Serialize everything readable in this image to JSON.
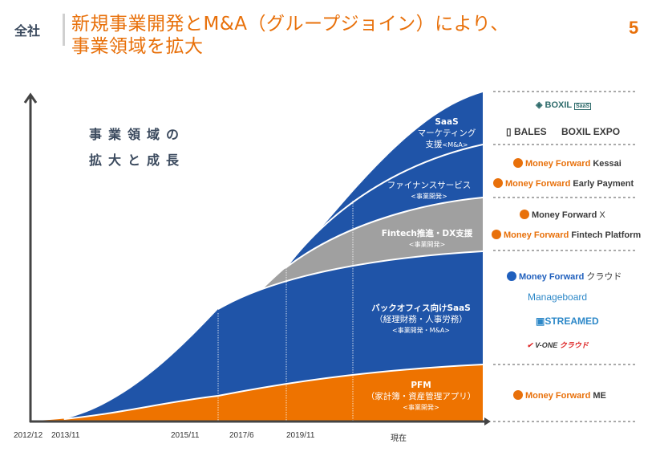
{
  "header": {
    "section": "全社",
    "title_line1": "新規事業開発とM&A（グループジョイン）により、",
    "title_line2": "事業領域を拡大",
    "page_number": "5"
  },
  "headline": {
    "line1": "事業領域の",
    "line2": "拡大と成長"
  },
  "colors": {
    "accent": "#e8700a",
    "blue": "#1f54a8",
    "gray": "#a0a0a0",
    "orange": "#ee7300",
    "axis": "#444444"
  },
  "chart_data": {
    "type": "area",
    "title": "事業領域の拡大と成長",
    "xlabel": "",
    "ylabel": "",
    "stacked": true,
    "x": [
      "2012/12",
      "2013/11",
      "2015/11",
      "2017/6",
      "2019/11",
      "現在"
    ],
    "x_tick_labels": [
      "2012/12",
      "2013/11",
      "2015/11",
      "2017/6",
      "2019/11",
      "現在"
    ],
    "y_axis_values_shown": false,
    "series": [
      {
        "name": "PFM",
        "line2": "（家計簿・資産管理アプリ）",
        "tag": "<事業開発>",
        "color": "#ee7300",
        "start": "2012/12"
      },
      {
        "name": "バックオフィス向けSaaS",
        "line2": "（経理財務・人事労務）",
        "tag": "<事業開発・M&A>",
        "color": "#1f54a8",
        "start": "2013/11"
      },
      {
        "name": "Fintech推進・DX支援",
        "line2": "",
        "tag": "<事業開発>",
        "color": "#a0a0a0",
        "start": "2015/11"
      },
      {
        "name": "ファイナンスサービス",
        "line2": "",
        "tag": "<事業開発>",
        "color": "#1f54a8",
        "start": "2017/6"
      },
      {
        "name": "SaaS",
        "line2": "マーケティング",
        "line3": "支援",
        "tag": "<M&A>",
        "color": "#1f54a8",
        "start": "2017/6"
      }
    ],
    "legend": "right"
  },
  "logos": {
    "saas_marketing": [
      "BOXIL SaaS",
      "BALES",
      "BOXIL EXPO"
    ],
    "finance": [
      "Money Forward Kessai",
      "Money Forward Early Payment"
    ],
    "fintech": [
      "Money Forward X",
      "Money Forward Fintech Platform"
    ],
    "backoffice": [
      "Money Forward クラウド",
      "Manageboard",
      "STREAMED",
      "V-ONE クラウド"
    ],
    "pfm": [
      "Money Forward ME"
    ]
  },
  "logo_parts": {
    "mf": "Money Forward",
    "kessai": "Kessai",
    "early": "Early Payment",
    "x": "X",
    "fp": "Fintech Platform",
    "cloud": "クラウド",
    "me": "ME",
    "boxil": "BOXIL",
    "saas_tag": "SaaS",
    "bales": "BALES",
    "expo": "BOXIL EXPO",
    "manageboard": "Manageboard",
    "streamed": "STREAMED",
    "vone": "V-ONE",
    "vone_cloud": "クラウド"
  }
}
